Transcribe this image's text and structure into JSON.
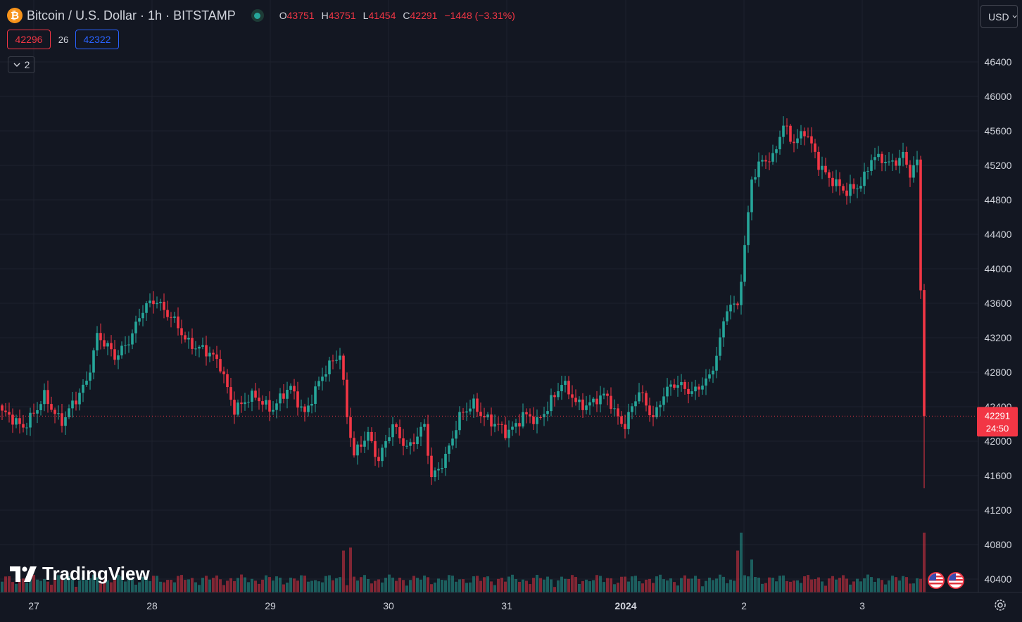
{
  "header": {
    "symbol": "Bitcoin / U.S. Dollar · 1h · BITSTAMP",
    "icon": "bitcoin-icon",
    "ohlc": {
      "o_label": "O",
      "o": "43751",
      "h_label": "H",
      "h": "43751",
      "l_label": "L",
      "l": "41454",
      "c_label": "C",
      "c": "42291",
      "change": "−1448 (−3.31%)"
    }
  },
  "trade": {
    "sell": "42296",
    "spread": "26",
    "buy": "42322"
  },
  "indicators_toggle": {
    "count": "2"
  },
  "currency": "USD",
  "brand": "TradingView",
  "price_tag": {
    "price": "42291",
    "countdown": "24:50"
  },
  "colors": {
    "bg": "#131722",
    "up": "#26a69a",
    "down": "#f23645",
    "grid": "#1e222d",
    "text": "#d1d4dc"
  },
  "chart_data": {
    "type": "candlestick",
    "interval": "1h",
    "y_ticks": [
      "46400",
      "46000",
      "45600",
      "45200",
      "44800",
      "44400",
      "44000",
      "43600",
      "43200",
      "42800",
      "42400",
      "42000",
      "41600",
      "41200",
      "40800",
      "40400"
    ],
    "x_ticks": [
      "27",
      "28",
      "29",
      "30",
      "31",
      "2024",
      "2",
      "3"
    ],
    "last_price": 42291,
    "ylim": [
      40200,
      46700
    ],
    "anchors": [
      {
        "t": 0,
        "p": 42300
      },
      {
        "t": 6,
        "p": 42200
      },
      {
        "t": 10,
        "p": 42350
      },
      {
        "t": 12,
        "p": 42500
      },
      {
        "t": 17,
        "p": 42250
      },
      {
        "t": 21,
        "p": 42450
      },
      {
        "t": 24,
        "p": 42700
      },
      {
        "t": 27,
        "p": 43250
      },
      {
        "t": 32,
        "p": 42950
      },
      {
        "t": 36,
        "p": 43200
      },
      {
        "t": 40,
        "p": 43500
      },
      {
        "t": 44,
        "p": 43650
      },
      {
        "t": 48,
        "p": 43450
      },
      {
        "t": 52,
        "p": 43150
      },
      {
        "t": 57,
        "p": 43100
      },
      {
        "t": 62,
        "p": 42850
      },
      {
        "t": 66,
        "p": 42400
      },
      {
        "t": 72,
        "p": 42500
      },
      {
        "t": 77,
        "p": 42400
      },
      {
        "t": 82,
        "p": 42600
      },
      {
        "t": 86,
        "p": 42350
      },
      {
        "t": 90,
        "p": 42650
      },
      {
        "t": 94,
        "p": 42950
      },
      {
        "t": 96,
        "p": 43050
      },
      {
        "t": 98,
        "p": 42300
      },
      {
        "t": 100,
        "p": 41800
      },
      {
        "t": 104,
        "p": 42100
      },
      {
        "t": 107,
        "p": 41800
      },
      {
        "t": 111,
        "p": 42150
      },
      {
        "t": 115,
        "p": 41950
      },
      {
        "t": 120,
        "p": 42150
      },
      {
        "t": 122,
        "p": 41550
      },
      {
        "t": 126,
        "p": 41850
      },
      {
        "t": 130,
        "p": 42250
      },
      {
        "t": 134,
        "p": 42450
      },
      {
        "t": 139,
        "p": 42200
      },
      {
        "t": 143,
        "p": 42100
      },
      {
        "t": 148,
        "p": 42300
      },
      {
        "t": 152,
        "p": 42200
      },
      {
        "t": 156,
        "p": 42500
      },
      {
        "t": 159,
        "p": 42650
      },
      {
        "t": 163,
        "p": 42450
      },
      {
        "t": 167,
        "p": 42450
      },
      {
        "t": 172,
        "p": 42500
      },
      {
        "t": 175,
        "p": 42300
      },
      {
        "t": 177,
        "p": 42200
      },
      {
        "t": 181,
        "p": 42550
      },
      {
        "t": 185,
        "p": 42300
      },
      {
        "t": 188,
        "p": 42550
      },
      {
        "t": 192,
        "p": 42650
      },
      {
        "t": 197,
        "p": 42600
      },
      {
        "t": 201,
        "p": 42700
      },
      {
        "t": 203,
        "p": 43000
      },
      {
        "t": 206,
        "p": 43600
      },
      {
        "t": 209,
        "p": 43550
      },
      {
        "t": 211,
        "p": 44200
      },
      {
        "t": 213,
        "p": 45050
      },
      {
        "t": 216,
        "p": 45300
      },
      {
        "t": 219,
        "p": 45250
      },
      {
        "t": 222,
        "p": 45650
      },
      {
        "t": 225,
        "p": 45500
      },
      {
        "t": 228,
        "p": 45600
      },
      {
        "t": 232,
        "p": 45200
      },
      {
        "t": 236,
        "p": 45050
      },
      {
        "t": 240,
        "p": 44850
      },
      {
        "t": 244,
        "p": 45000
      },
      {
        "t": 247,
        "p": 45300
      },
      {
        "t": 252,
        "p": 45200
      },
      {
        "t": 256,
        "p": 45350
      },
      {
        "t": 258,
        "p": 45100
      },
      {
        "t": 260,
        "p": 45200
      },
      {
        "t": 261,
        "p": 43750
      },
      {
        "t": 262,
        "p": 42291
      }
    ],
    "volume_spikes": [
      {
        "t": 97,
        "v": 0.7
      },
      {
        "t": 99,
        "v": 0.75
      },
      {
        "t": 209,
        "v": 0.7
      },
      {
        "t": 210,
        "v": 1.0
      },
      {
        "t": 213,
        "v": 0.55
      },
      {
        "t": 262,
        "v": 1.0
      }
    ]
  }
}
